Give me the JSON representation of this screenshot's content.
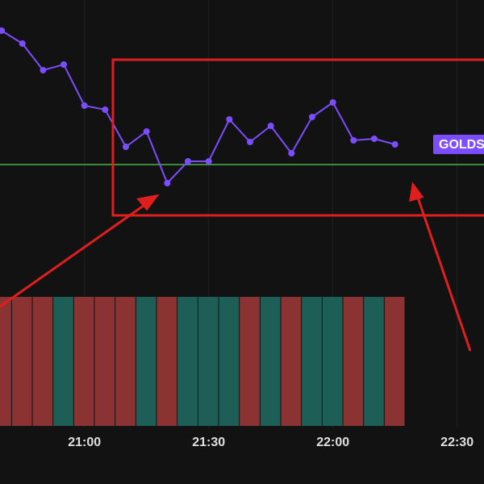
{
  "chart_data": {
    "type": "line",
    "x": [
      1240,
      1245,
      1250,
      1255,
      1260,
      1265,
      1270,
      1275,
      1280,
      1285,
      1290,
      1295,
      1300,
      1305,
      1310,
      1315,
      1320,
      1325,
      1330,
      1335
    ],
    "series": [
      {
        "name": "GOLDS",
        "color": "#7c4dff",
        "values": [
          26.2,
          24.6,
          21.3,
          22.0,
          16.9,
          16.4,
          11.8,
          13.7,
          7.3,
          10.0,
          10.0,
          15.2,
          12.4,
          14.4,
          11.0,
          15.5,
          17.3,
          12.6,
          12.8,
          12.1
        ]
      }
    ],
    "reference_line": {
      "value": 9.6,
      "color": "#4caf50"
    },
    "volume": {
      "values": [
        100,
        100,
        100,
        100,
        100,
        100,
        100,
        100,
        100,
        100,
        100,
        100,
        100,
        100,
        100,
        100,
        100,
        100,
        100,
        100
      ],
      "colors": [
        "#8b3333",
        "#8b3333",
        "#8b3333",
        "#1d5f57",
        "#8b3333",
        "#8b3333",
        "#8b3333",
        "#1d5f57",
        "#8b3333",
        "#1d5f57",
        "#1d5f57",
        "#1d5f57",
        "#8b3333",
        "#1d5f57",
        "#8b3333",
        "#1d5f57",
        "#1d5f57",
        "#8b3333",
        "#1d5f57",
        "#8b3333"
      ],
      "vlim": [
        0,
        100
      ]
    },
    "xlim": [
      1239.6,
      1356.5
    ],
    "ylim": [
      0,
      30
    ],
    "xticks": [
      {
        "value": 1260,
        "label": "21:00"
      },
      {
        "value": 1290,
        "label": "21:30"
      },
      {
        "value": 1320,
        "label": "22:00"
      },
      {
        "value": 1350,
        "label": "22:30"
      }
    ],
    "grid": true
  }
}
